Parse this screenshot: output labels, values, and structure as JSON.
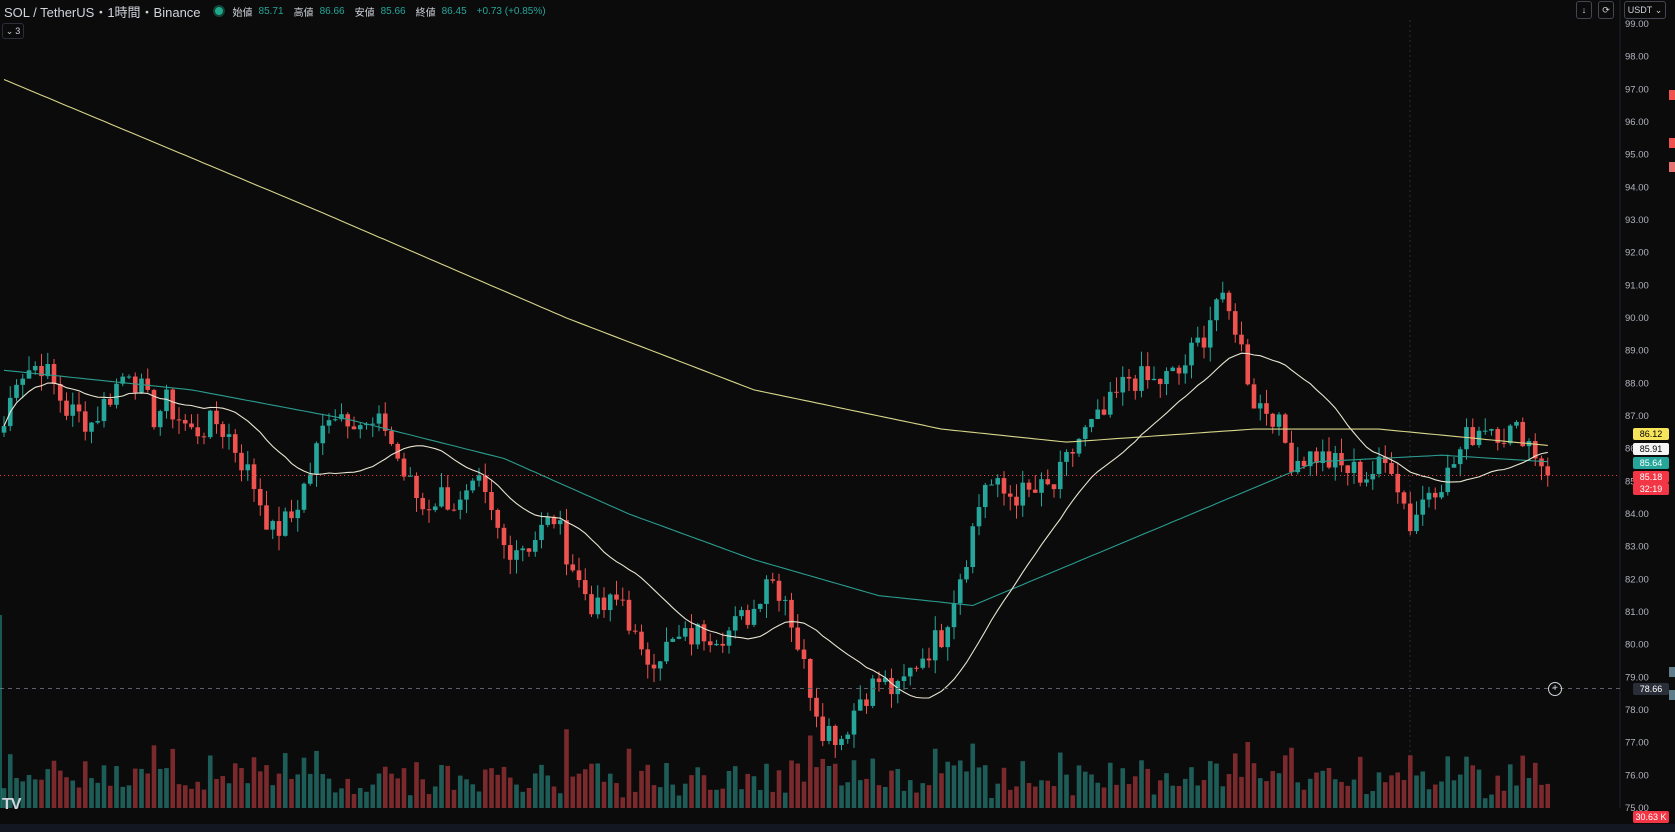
{
  "header": {
    "symbol": "SOL / TetherUS・1時間・Binance",
    "open_label": "始値",
    "open_value": "85.71",
    "high_label": "高値",
    "high_value": "86.66",
    "low_label": "安値",
    "low_value": "85.66",
    "close_label": "終値",
    "close_value": "86.45",
    "change": "+0.73 (+0.85%)",
    "indicators_collapsed_count": "3"
  },
  "toolbar": {
    "currency": "USDT",
    "currency_menu_icon": "chevron-down-icon",
    "download_icon": "download-icon",
    "refresh_icon": "refresh-icon"
  },
  "price_labels": {
    "ma200": "86.12",
    "ma20": "85.91",
    "ma50": "85.64",
    "last_price": "85.18",
    "countdown": "32:19",
    "crosshair_price": "78.66",
    "volume": "30.63 K"
  },
  "colors": {
    "background": "#0b0b0c",
    "up": "#26a69a",
    "down": "#ef5350",
    "ma20": "#e8e5d0",
    "ma50": "#2a9d8f",
    "ma200": "#d8d68a",
    "label_ma200_bg": "#f7e45a",
    "label_ma20_bg": "#f5f5f5",
    "label_ma50_bg": "#26a69a",
    "label_last_bg": "#f23645"
  },
  "chart_data": {
    "type": "candlestick",
    "interval": "1時間",
    "ylim": [
      75.0,
      99.0
    ],
    "y_ticks": [
      "99.00",
      "98.00",
      "97.00",
      "96.00",
      "95.00",
      "94.00",
      "93.00",
      "92.00",
      "91.00",
      "90.00",
      "89.00",
      "88.00",
      "87.00",
      "86.00",
      "85.00",
      "84.00",
      "83.00",
      "82.00",
      "81.00",
      "80.00",
      "79.00",
      "78.00",
      "77.00",
      "76.00",
      "75.00"
    ],
    "candles_count": 260,
    "anchors": [
      {
        "i": 0,
        "p": 86.7
      },
      {
        "i": 2,
        "p": 88.3
      },
      {
        "i": 6,
        "p": 88.6
      },
      {
        "i": 10,
        "p": 87.2
      },
      {
        "i": 14,
        "p": 86.8
      },
      {
        "i": 20,
        "p": 88.5
      },
      {
        "i": 24,
        "p": 87.0
      },
      {
        "i": 26,
        "p": 87.4
      },
      {
        "i": 30,
        "p": 86.5
      },
      {
        "i": 34,
        "p": 86.8
      },
      {
        "i": 36,
        "p": 86.4
      },
      {
        "i": 40,
        "p": 84.9
      },
      {
        "i": 43,
        "p": 83.4
      },
      {
        "i": 46,
        "p": 83.9
      },
      {
        "i": 49,
        "p": 85.3
      },
      {
        "i": 52,
        "p": 87.2
      },
      {
        "i": 56,
        "p": 87.0
      },
      {
        "i": 58,
        "p": 86.6
      },
      {
        "i": 61,
        "p": 86.7
      },
      {
        "i": 64,
        "p": 85.2
      },
      {
        "i": 67,
        "p": 84.2
      },
      {
        "i": 70,
        "p": 84.6
      },
      {
        "i": 73,
        "p": 84.2
      },
      {
        "i": 76,
        "p": 84.8
      },
      {
        "i": 80,
        "p": 83.0
      },
      {
        "i": 84,
        "p": 83.1
      },
      {
        "i": 88,
        "p": 83.9
      },
      {
        "i": 92,
        "p": 81.9
      },
      {
        "i": 95,
        "p": 81.0
      },
      {
        "i": 99,
        "p": 81.4
      },
      {
        "i": 102,
        "p": 79.5
      },
      {
        "i": 105,
        "p": 79.8
      },
      {
        "i": 108,
        "p": 80.1
      },
      {
        "i": 112,
        "p": 80.4
      },
      {
        "i": 116,
        "p": 80.4
      },
      {
        "i": 120,
        "p": 81.1
      },
      {
        "i": 122,
        "p": 82.2
      },
      {
        "i": 125,
        "p": 81.5
      },
      {
        "i": 128,
        "p": 79.3
      },
      {
        "i": 131,
        "p": 77.5
      },
      {
        "i": 134,
        "p": 77.2
      },
      {
        "i": 137,
        "p": 78.4
      },
      {
        "i": 140,
        "p": 78.9
      },
      {
        "i": 143,
        "p": 78.5
      },
      {
        "i": 146,
        "p": 79.5
      },
      {
        "i": 150,
        "p": 80.3
      },
      {
        "i": 154,
        "p": 82.8
      },
      {
        "i": 157,
        "p": 85.0
      },
      {
        "i": 160,
        "p": 84.6
      },
      {
        "i": 164,
        "p": 84.6
      },
      {
        "i": 168,
        "p": 84.8
      },
      {
        "i": 172,
        "p": 86.3
      },
      {
        "i": 176,
        "p": 87.0
      },
      {
        "i": 180,
        "p": 88.2
      },
      {
        "i": 184,
        "p": 88.0
      },
      {
        "i": 188,
        "p": 88.3
      },
      {
        "i": 192,
        "p": 89.5
      },
      {
        "i": 194,
        "p": 90.6
      },
      {
        "i": 197,
        "p": 89.8
      },
      {
        "i": 200,
        "p": 87.5
      },
      {
        "i": 203,
        "p": 87.1
      },
      {
        "i": 206,
        "p": 85.7
      },
      {
        "i": 210,
        "p": 85.8
      },
      {
        "i": 214,
        "p": 85.4
      },
      {
        "i": 218,
        "p": 85.2
      },
      {
        "i": 222,
        "p": 85.6
      },
      {
        "i": 225,
        "p": 83.7
      },
      {
        "i": 228,
        "p": 84.8
      },
      {
        "i": 231,
        "p": 85.2
      },
      {
        "i": 234,
        "p": 86.3
      },
      {
        "i": 237,
        "p": 86.8
      },
      {
        "i": 240,
        "p": 86.5
      },
      {
        "i": 243,
        "p": 86.5
      },
      {
        "i": 246,
        "p": 85.6
      },
      {
        "i": 247,
        "p": 85.2
      }
    ],
    "ma200_anchors": [
      {
        "i": 0,
        "p": 97.3
      },
      {
        "i": 50,
        "p": 93.3
      },
      {
        "i": 90,
        "p": 90.0
      },
      {
        "i": 120,
        "p": 87.8
      },
      {
        "i": 150,
        "p": 86.6
      },
      {
        "i": 170,
        "p": 86.2
      },
      {
        "i": 200,
        "p": 86.6
      },
      {
        "i": 220,
        "p": 86.6
      },
      {
        "i": 247,
        "p": 86.1
      }
    ],
    "ma50_anchors": [
      {
        "i": 0,
        "p": 88.4
      },
      {
        "i": 30,
        "p": 87.8
      },
      {
        "i": 55,
        "p": 86.9
      },
      {
        "i": 80,
        "p": 85.7
      },
      {
        "i": 100,
        "p": 84.0
      },
      {
        "i": 120,
        "p": 82.6
      },
      {
        "i": 140,
        "p": 81.5
      },
      {
        "i": 155,
        "p": 81.2
      },
      {
        "i": 170,
        "p": 82.4
      },
      {
        "i": 190,
        "p": 84.0
      },
      {
        "i": 210,
        "p": 85.6
      },
      {
        "i": 230,
        "p": 85.8
      },
      {
        "i": 247,
        "p": 85.6
      }
    ],
    "volume_scale_max": 100,
    "price_line": 85.18,
    "crosshair_price": 78.66
  }
}
